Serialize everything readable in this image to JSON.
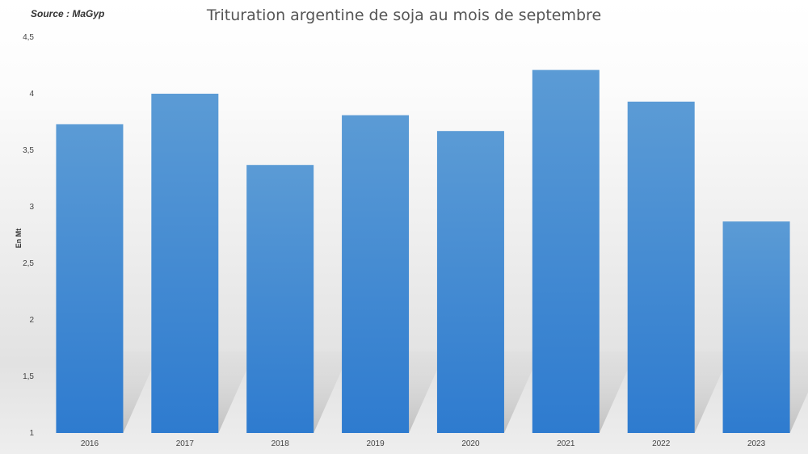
{
  "source": "Source : MaGyp",
  "chart_data": {
    "type": "bar",
    "title": "Trituration argentine de soja au mois de septembre",
    "xlabel": "",
    "ylabel": "En Mt",
    "categories": [
      "2016",
      "2017",
      "2018",
      "2019",
      "2020",
      "2021",
      "2022",
      "2023"
    ],
    "values": [
      3.73,
      4.0,
      3.37,
      3.81,
      3.67,
      4.21,
      3.93,
      2.87
    ],
    "ylim": [
      1,
      4.5
    ],
    "yticks": [
      "1",
      "1,5",
      "2",
      "2,5",
      "3",
      "3,5",
      "4",
      "4,5"
    ],
    "ytick_values": [
      1,
      1.5,
      2,
      2.5,
      3,
      3.5,
      4,
      4.5
    ],
    "grid": false,
    "legend": "none",
    "colors": {
      "bar_top": "#5b9bd5",
      "bar_bottom": "#2e7bcf",
      "shadow": "#c9c9c9"
    }
  }
}
